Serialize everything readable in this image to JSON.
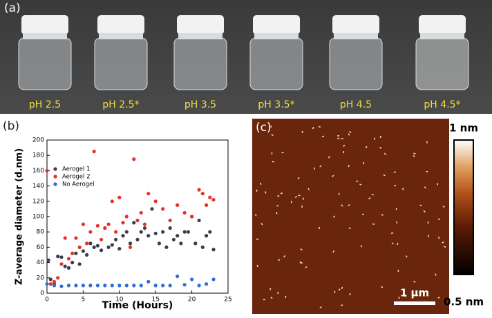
{
  "panel_a": {
    "label": "(a)",
    "vial_labels": [
      "pH 2.5",
      "pH 2.5*",
      "pH 3.5",
      "pH 3.5*",
      "pH 4.5",
      "pH 4.5*"
    ]
  },
  "chart_data": {
    "type": "scatter",
    "panel_label": "(b)",
    "x_label": "Time (Hours)",
    "y_label": "Z-average diameter (d.nm)",
    "xlim": [
      0,
      25
    ],
    "xticks": [
      0,
      5,
      10,
      15,
      20,
      25
    ],
    "ylim": [
      0,
      200
    ],
    "yticks": [
      0,
      20,
      40,
      60,
      80,
      100,
      120,
      140,
      160,
      180,
      200
    ],
    "legend": "upper left",
    "series": [
      {
        "name": "Aerogel 1",
        "color": "#3d3d4a",
        "x": [
          0.2,
          0.5,
          1,
          1.5,
          2,
          2.5,
          3,
          3.5,
          4,
          4.5,
          5,
          5.5,
          6,
          6.5,
          7,
          7.5,
          8,
          8.5,
          9,
          9.5,
          10,
          10.5,
          11,
          11.5,
          12,
          12.5,
          13,
          13.5,
          14,
          14.5,
          15,
          15.5,
          16,
          16.5,
          17,
          17.5,
          18,
          18.5,
          19,
          19.5,
          20,
          20.5,
          21,
          21.5,
          22,
          22.5,
          23
        ],
        "values": [
          43,
          18,
          12,
          48,
          47,
          35,
          33,
          40,
          52,
          38,
          55,
          50,
          65,
          60,
          62,
          56,
          85,
          60,
          63,
          70,
          58,
          75,
          80,
          65,
          92,
          70,
          80,
          85,
          75,
          110,
          78,
          65,
          80,
          60,
          85,
          70,
          75,
          65,
          80,
          80,
          100,
          65,
          95,
          60,
          75,
          80,
          57
        ]
      },
      {
        "name": "Aerogel 2",
        "color": "#e53228",
        "x": [
          0,
          0.5,
          1,
          1.5,
          2,
          2.5,
          3,
          3.5,
          4,
          4.5,
          5,
          5.5,
          6,
          6.5,
          7,
          7.5,
          8,
          8.5,
          9,
          9.5,
          10,
          10.5,
          11,
          11.5,
          12,
          12.5,
          13,
          13.5,
          14,
          15,
          16,
          17,
          18,
          19,
          20,
          21,
          21.5,
          22,
          22.5,
          23
        ],
        "values": [
          160,
          12,
          15,
          20,
          38,
          72,
          45,
          52,
          72,
          60,
          90,
          65,
          80,
          185,
          88,
          70,
          85,
          90,
          120,
          80,
          125,
          92,
          100,
          60,
          175,
          95,
          105,
          90,
          130,
          120,
          110,
          95,
          115,
          105,
          100,
          135,
          130,
          115,
          125,
          122
        ]
      },
      {
        "name": "No Aerogel",
        "color": "#2f6fce",
        "x": [
          0,
          1,
          2,
          3,
          4,
          5,
          6,
          7,
          8,
          9,
          10,
          11,
          12,
          13,
          14,
          15,
          16,
          17,
          18,
          19,
          20,
          21,
          22,
          23
        ],
        "values": [
          12,
          10,
          9,
          10,
          10,
          10,
          10,
          10,
          10,
          10,
          10,
          10,
          10,
          10,
          15,
          10,
          10,
          10,
          22,
          11,
          18,
          10,
          12,
          18
        ]
      }
    ]
  },
  "panel_c": {
    "label": "(c)",
    "colorbar_max": "1 nm",
    "colorbar_min": "0.5 nm",
    "scale_bar": "1 µm"
  }
}
